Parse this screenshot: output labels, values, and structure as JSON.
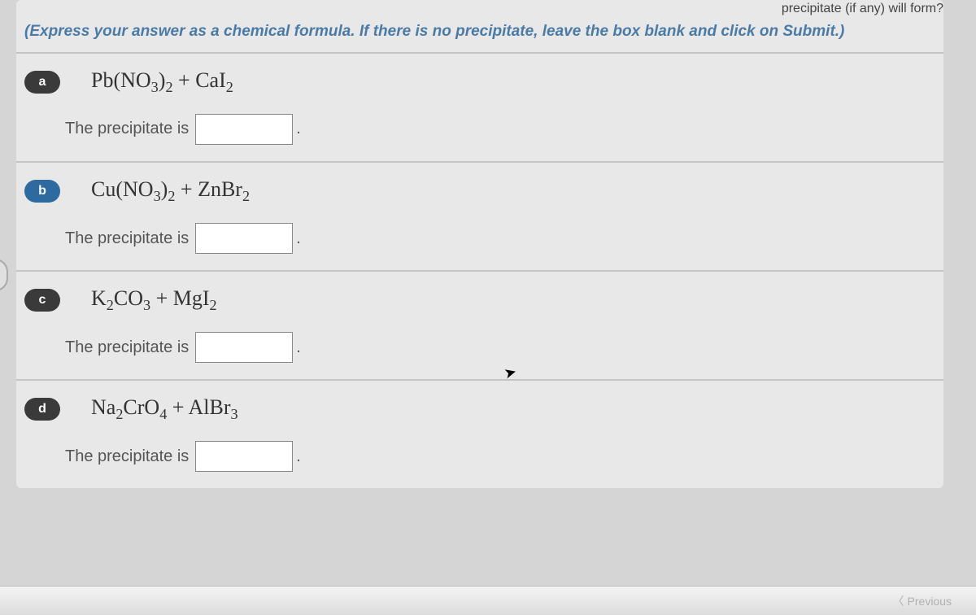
{
  "header_text": "precipitate (if any) will form?",
  "instruction": "(Express your answer as a chemical formula. If there is no precipitate, leave the box blank and click on Submit.)",
  "answer_label": "The precipitate is",
  "period": ".",
  "questions": [
    {
      "id": "a",
      "badge_class": "badge-a",
      "formula_html": "Pb(NO<sub>3</sub>)<sub>2</sub> + CaI<sub>2</sub>",
      "value": ""
    },
    {
      "id": "b",
      "badge_class": "badge-b",
      "formula_html": "Cu(NO<sub>3</sub>)<sub>2</sub> + ZnBr<sub>2</sub>",
      "value": ""
    },
    {
      "id": "c",
      "badge_class": "badge-c",
      "formula_html": "K<sub>2</sub>CO<sub>3</sub> + MgI<sub>2</sub>",
      "value": ""
    },
    {
      "id": "d",
      "badge_class": "badge-d",
      "formula_html": "Na<sub>2</sub>CrO<sub>4</sub> + AlBr<sub>3</sub>",
      "value": ""
    }
  ],
  "prev_label": "Previous"
}
